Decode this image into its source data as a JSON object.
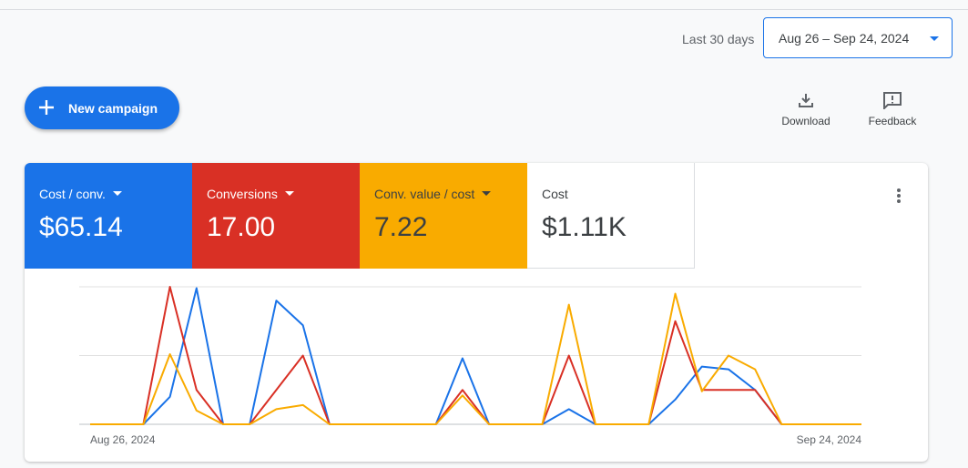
{
  "date_range": {
    "label": "Last 30 days",
    "value": "Aug 26 – Sep 24, 2024"
  },
  "actions": {
    "new_campaign": "New campaign",
    "download": "Download",
    "feedback": "Feedback"
  },
  "metrics": [
    {
      "label": "Cost / conv.",
      "value": "$65.14",
      "color": "#1a73e8",
      "text_color": "#ffffff",
      "dropdown": true
    },
    {
      "label": "Conversions",
      "value": "17.00",
      "color": "#d93025",
      "text_color": "#ffffff",
      "dropdown": true
    },
    {
      "label": "Conv. value / cost",
      "value": "7.22",
      "color": "#f9ab00",
      "text_color": "#3c4043",
      "dropdown": true
    },
    {
      "label": "Cost",
      "value": "$1.11K",
      "color": "#ffffff",
      "text_color": "#3c4043",
      "dropdown": false
    }
  ],
  "chart_data": {
    "type": "line",
    "categories": [
      "Aug 26, 2024",
      null,
      null,
      null,
      null,
      null,
      null,
      null,
      null,
      null,
      null,
      null,
      null,
      null,
      null,
      null,
      null,
      null,
      null,
      null,
      null,
      null,
      null,
      null,
      null,
      null,
      null,
      null,
      null,
      "Sep 24, 2024"
    ],
    "series": [
      {
        "color": "#1a73e8",
        "values": [
          0,
          0,
          0,
          20,
          99,
          0,
          0,
          90,
          72,
          0,
          0,
          0,
          0,
          0,
          48,
          0,
          0,
          0,
          11,
          0,
          0,
          0,
          18,
          42,
          40,
          25,
          0,
          0,
          0,
          0
        ]
      },
      {
        "color": "#d93025",
        "values": [
          0,
          0,
          0,
          100,
          25,
          0,
          0,
          25,
          50,
          0,
          0,
          0,
          0,
          0,
          25,
          0,
          0,
          0,
          50,
          0,
          0,
          0,
          75,
          25,
          25,
          25,
          0,
          0,
          0,
          0
        ]
      },
      {
        "color": "#f9ab00",
        "values": [
          0,
          0,
          0,
          51,
          10,
          0,
          0,
          11,
          14,
          0,
          0,
          0,
          0,
          0,
          21,
          0,
          0,
          0,
          87,
          0,
          0,
          0,
          95,
          24,
          50,
          40,
          0,
          0,
          0,
          0
        ]
      }
    ],
    "ylim": [
      0,
      100
    ],
    "yticks": [
      0,
      50,
      100
    ],
    "grid": true
  }
}
